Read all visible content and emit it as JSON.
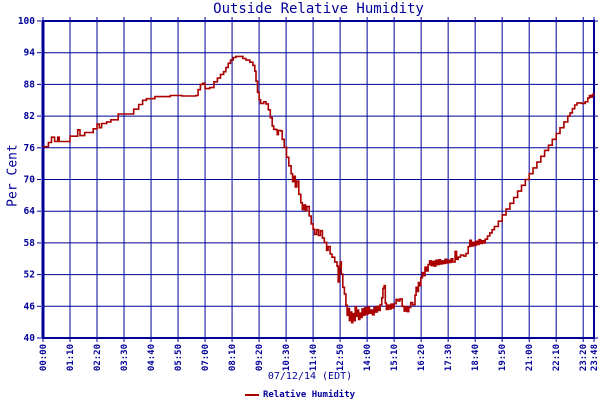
{
  "title": "Outside Relative Humidity",
  "y_axis": {
    "label": "Per Cent",
    "tick_values": [
      100,
      94,
      88,
      82,
      76,
      70,
      64,
      58,
      52,
      46,
      40
    ]
  },
  "x_axis": {
    "date_label": "07/12/14 (EDT)",
    "tick_labels": [
      "00:00",
      "01:10",
      "02:20",
      "03:30",
      "04:40",
      "05:50",
      "07:00",
      "08:10",
      "09:20",
      "10:30",
      "11:40",
      "12:50",
      "14:00",
      "15:10",
      "16:20",
      "17:30",
      "18:40",
      "19:50",
      "21:00",
      "22:10",
      "23:20",
      "23:48"
    ],
    "tick_minutes": [
      0,
      70,
      140,
      210,
      280,
      350,
      420,
      490,
      560,
      630,
      700,
      770,
      840,
      910,
      980,
      1050,
      1120,
      1190,
      1260,
      1330,
      1400,
      1428
    ]
  },
  "legend": {
    "label": "Relative Humidity"
  },
  "colors": {
    "axis": "#000099",
    "grid": "#000099",
    "series": "#aa0000",
    "text": "#000099",
    "background": "#ffffff"
  },
  "chart_data": {
    "type": "line",
    "title": "Outside Relative Humidity",
    "xlabel": "07/12/14 (EDT)",
    "ylabel": "Per Cent",
    "xlim": [
      0,
      1428
    ],
    "ylim": [
      40,
      100
    ],
    "grid": true,
    "legend_position": "bottom",
    "x_unit": "minutes_after_midnight",
    "series": [
      {
        "name": "Relative Humidity",
        "color": "#aa0000",
        "points": [
          [
            0,
            76.2
          ],
          [
            10,
            76.2
          ],
          [
            14,
            77
          ],
          [
            22,
            78
          ],
          [
            30,
            77.2
          ],
          [
            38,
            78
          ],
          [
            42,
            77.2
          ],
          [
            66,
            77.2
          ],
          [
            70,
            78.2
          ],
          [
            88,
            78.2
          ],
          [
            90,
            79.4
          ],
          [
            96,
            78.3
          ],
          [
            108,
            78.9
          ],
          [
            130,
            79.6
          ],
          [
            140,
            80.5
          ],
          [
            146,
            79.8
          ],
          [
            152,
            80.6
          ],
          [
            165,
            80.9
          ],
          [
            176,
            81.3
          ],
          [
            195,
            82.4
          ],
          [
            228,
            82.4
          ],
          [
            235,
            83.3
          ],
          [
            248,
            84.2
          ],
          [
            258,
            85
          ],
          [
            268,
            85.3
          ],
          [
            290,
            85.7
          ],
          [
            330,
            85.9
          ],
          [
            360,
            85.8
          ],
          [
            396,
            85.9
          ],
          [
            402,
            87
          ],
          [
            408,
            88
          ],
          [
            414,
            88.2
          ],
          [
            420,
            87.2
          ],
          [
            432,
            87.4
          ],
          [
            443,
            88.5
          ],
          [
            452,
            89.2
          ],
          [
            460,
            89.9
          ],
          [
            468,
            90.4
          ],
          [
            474,
            91.2
          ],
          [
            480,
            92
          ],
          [
            486,
            92.6
          ],
          [
            493,
            93.1
          ],
          [
            500,
            93.3
          ],
          [
            512,
            93.3
          ],
          [
            518,
            92.9
          ],
          [
            526,
            92.6
          ],
          [
            536,
            92.2
          ],
          [
            544,
            91.6
          ],
          [
            549,
            90.5
          ],
          [
            552,
            88.6
          ],
          [
            556,
            86.5
          ],
          [
            560,
            85.1
          ],
          [
            564,
            84.4
          ],
          [
            572,
            84.7
          ],
          [
            578,
            84.3
          ],
          [
            584,
            83.2
          ],
          [
            589,
            81.7
          ],
          [
            594,
            80.1
          ],
          [
            598,
            79.5
          ],
          [
            604,
            79.4
          ],
          [
            607,
            78.5
          ],
          [
            610,
            79.3
          ],
          [
            616,
            79.2
          ],
          [
            620,
            77.6
          ],
          [
            625,
            76.1
          ],
          [
            631,
            74.2
          ],
          [
            637,
            72.6
          ],
          [
            643,
            71.1
          ],
          [
            647,
            69.6
          ],
          [
            650,
            70.6
          ],
          [
            654,
            68.6
          ],
          [
            658,
            69.7
          ],
          [
            663,
            67.2
          ],
          [
            668,
            65.6
          ],
          [
            672,
            64.3
          ],
          [
            676,
            65.2
          ],
          [
            680,
            64.1
          ],
          [
            684,
            64.9
          ],
          [
            690,
            63.1
          ],
          [
            695,
            61.6
          ],
          [
            700,
            60.6
          ],
          [
            704,
            59.6
          ],
          [
            709,
            60.5
          ],
          [
            714,
            59.4
          ],
          [
            719,
            60.3
          ],
          [
            724,
            58.9
          ],
          [
            729,
            58.1
          ],
          [
            735,
            56.6
          ],
          [
            739,
            57.3
          ],
          [
            744,
            55.9
          ],
          [
            749,
            55.3
          ],
          [
            756,
            54.4
          ],
          [
            762,
            53.6
          ],
          [
            765,
            50.6
          ],
          [
            768,
            53.4
          ],
          [
            770,
            54.4
          ],
          [
            773,
            52.1
          ],
          [
            777,
            49.6
          ],
          [
            781,
            48.3
          ],
          [
            785,
            46.2
          ],
          [
            788,
            44.3
          ],
          [
            791,
            45.6
          ],
          [
            794,
            43.3
          ],
          [
            797,
            44.9
          ],
          [
            800,
            42.9
          ],
          [
            803,
            44.6
          ],
          [
            806,
            43.3
          ],
          [
            809,
            45.9
          ],
          [
            812,
            44.1
          ],
          [
            815,
            45.3
          ],
          [
            818,
            43.5
          ],
          [
            821,
            44.7
          ],
          [
            824,
            43.9
          ],
          [
            827,
            45.5
          ],
          [
            830,
            44.3
          ],
          [
            834,
            45.7
          ],
          [
            838,
            44.5
          ],
          [
            842,
            45.9
          ],
          [
            846,
            44.7
          ],
          [
            850,
            45.3
          ],
          [
            854,
            44.4
          ],
          [
            858,
            45.8
          ],
          [
            862,
            44.9
          ],
          [
            866,
            46
          ],
          [
            870,
            45.2
          ],
          [
            874,
            46.3
          ],
          [
            878,
            47.6
          ],
          [
            881,
            49.4
          ],
          [
            884,
            49.9
          ],
          [
            887,
            46.6
          ],
          [
            890,
            45.4
          ],
          [
            894,
            46.2
          ],
          [
            898,
            45.5
          ],
          [
            902,
            46.4
          ],
          [
            906,
            45.7
          ],
          [
            910,
            46.5
          ],
          [
            915,
            47.3
          ],
          [
            920,
            47
          ],
          [
            925,
            47.4
          ],
          [
            931,
            46
          ],
          [
            936,
            45.1
          ],
          [
            940,
            45.9
          ],
          [
            944,
            45
          ],
          [
            948,
            45.8
          ],
          [
            953,
            46.7
          ],
          [
            958,
            46.3
          ],
          [
            964,
            48.1
          ],
          [
            967,
            49.6
          ],
          [
            970,
            48.8
          ],
          [
            973,
            50.5
          ],
          [
            976,
            49.9
          ],
          [
            979,
            51.4
          ],
          [
            983,
            52.4
          ],
          [
            986,
            51.8
          ],
          [
            990,
            53.4
          ],
          [
            994,
            52.7
          ],
          [
            998,
            53.9
          ],
          [
            1002,
            54.6
          ],
          [
            1006,
            53.7
          ],
          [
            1010,
            54.5
          ],
          [
            1014,
            53.6
          ],
          [
            1018,
            54.7
          ],
          [
            1022,
            53.9
          ],
          [
            1026,
            54.8
          ],
          [
            1030,
            54
          ],
          [
            1034,
            54.6
          ],
          [
            1038,
            54.1
          ],
          [
            1042,
            54.9
          ],
          [
            1046,
            54.2
          ],
          [
            1050,
            54.7
          ],
          [
            1054,
            54.3
          ],
          [
            1058,
            55
          ],
          [
            1062,
            54.4
          ],
          [
            1068,
            56.4
          ],
          [
            1072,
            54.9
          ],
          [
            1076,
            55.3
          ],
          [
            1082,
            55.7
          ],
          [
            1090,
            55.5
          ],
          [
            1096,
            56
          ],
          [
            1102,
            57.3
          ],
          [
            1106,
            58.5
          ],
          [
            1110,
            57.4
          ],
          [
            1114,
            58.1
          ],
          [
            1118,
            57.5
          ],
          [
            1122,
            58.3
          ],
          [
            1126,
            57.7
          ],
          [
            1130,
            58.6
          ],
          [
            1134,
            57.9
          ],
          [
            1138,
            58.4
          ],
          [
            1142,
            58
          ],
          [
            1146,
            58.7
          ],
          [
            1152,
            59.3
          ],
          [
            1158,
            59.9
          ],
          [
            1164,
            60.5
          ],
          [
            1170,
            61.1
          ],
          [
            1180,
            62.1
          ],
          [
            1190,
            63.3
          ],
          [
            1200,
            64.4
          ],
          [
            1210,
            65.5
          ],
          [
            1220,
            66.6
          ],
          [
            1230,
            67.8
          ],
          [
            1240,
            68.9
          ],
          [
            1250,
            70
          ],
          [
            1260,
            71.1
          ],
          [
            1270,
            72.2
          ],
          [
            1280,
            73.3
          ],
          [
            1290,
            74.4
          ],
          [
            1300,
            75.5
          ],
          [
            1310,
            76.5
          ],
          [
            1320,
            77.6
          ],
          [
            1330,
            78.7
          ],
          [
            1340,
            79.8
          ],
          [
            1350,
            80.9
          ],
          [
            1360,
            82
          ],
          [
            1366,
            82.6
          ],
          [
            1372,
            83.4
          ],
          [
            1378,
            84.1
          ],
          [
            1384,
            84.5
          ],
          [
            1395,
            84.4
          ],
          [
            1405,
            84.7
          ],
          [
            1412,
            85.4
          ],
          [
            1416,
            85.9
          ],
          [
            1420,
            85.6
          ],
          [
            1424,
            86.1
          ],
          [
            1428,
            86.3
          ]
        ]
      }
    ]
  }
}
